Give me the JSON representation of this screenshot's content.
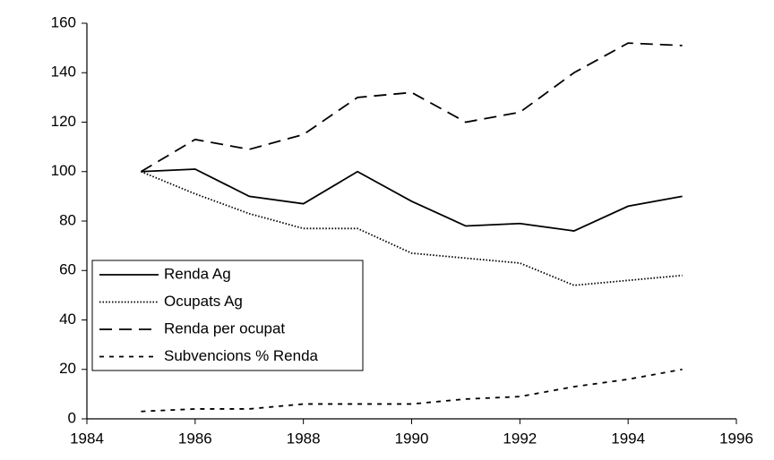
{
  "chart_data": {
    "type": "line",
    "x": [
      1985,
      1986,
      1987,
      1988,
      1989,
      1990,
      1991,
      1992,
      1993,
      1994,
      1995
    ],
    "series": [
      {
        "name": "Renda Ag",
        "color": "#000000",
        "dash": "none",
        "values": [
          100,
          101,
          90,
          87,
          100,
          88,
          78,
          79,
          76,
          86,
          90
        ]
      },
      {
        "name": "Ocupats Ag",
        "color": "#000000",
        "dash": "1.5 2",
        "values": [
          100,
          91,
          83,
          77,
          77,
          67,
          65,
          63,
          54,
          56,
          58
        ]
      },
      {
        "name": "Renda per ocupat",
        "color": "#000000",
        "dash": "14 8",
        "values": [
          100,
          113,
          109,
          115,
          130,
          132,
          120,
          124,
          140,
          152,
          151
        ]
      },
      {
        "name": "Subvencions % Renda",
        "color": "#000000",
        "dash": "5 6",
        "values": [
          3,
          4,
          4,
          6,
          6,
          6,
          8,
          9,
          13,
          16,
          20
        ]
      }
    ],
    "xlim": [
      1984,
      1996
    ],
    "xticks": [
      1984,
      1986,
      1988,
      1990,
      1992,
      1994,
      1996
    ],
    "ylim": [
      0,
      160
    ],
    "yticks": [
      0,
      20,
      40,
      60,
      80,
      100,
      120,
      140,
      160
    ],
    "grid": false,
    "legend": "lower left"
  }
}
